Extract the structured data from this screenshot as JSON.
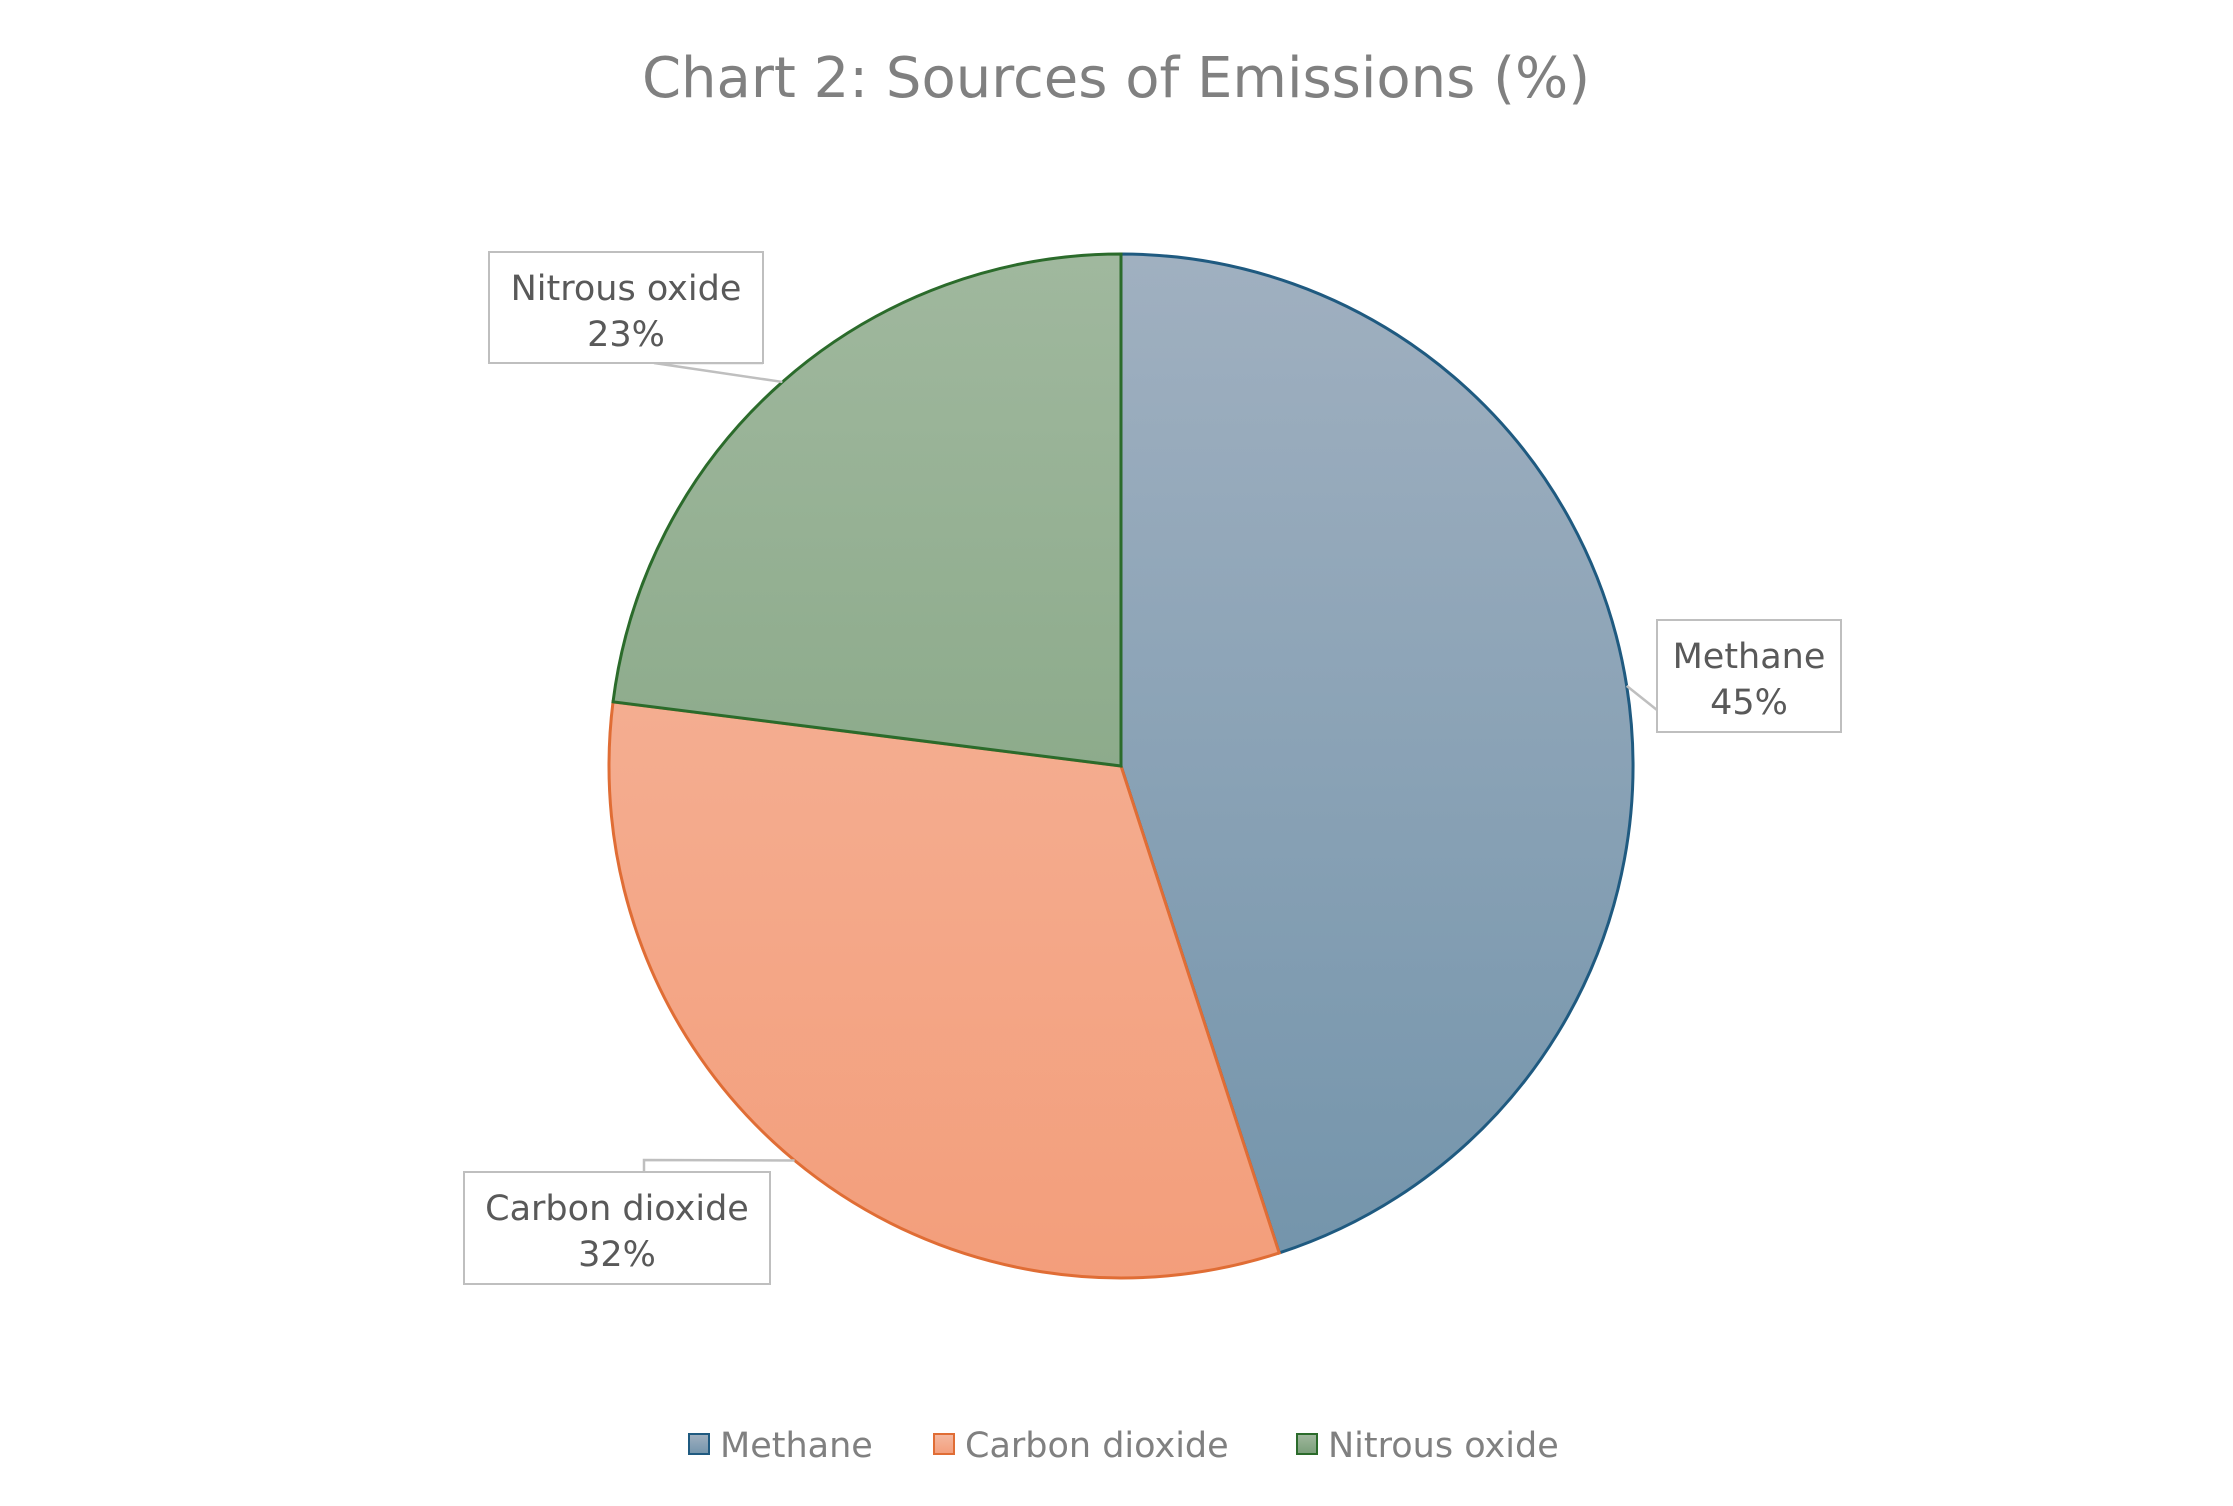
{
  "chart_data": {
    "type": "pie",
    "title": "Chart 2: Sources of Emissions (%)",
    "categories": [
      "Methane",
      "Carbon dioxide",
      "Nitrous oxide"
    ],
    "values": [
      45,
      32,
      23
    ],
    "data_labels": [
      {
        "name": "Methane",
        "value": "45%"
      },
      {
        "name": "Carbon dioxide",
        "value": "32%"
      },
      {
        "name": "Nitrous oxide",
        "value": "23%"
      }
    ],
    "start_angle": "12 o'clock, clockwise",
    "legend_position": "bottom",
    "colors": {
      "Methane": {
        "fill_top": "#a0b0c0",
        "fill_bottom": "#7394ab",
        "stroke": "#1f5a80"
      },
      "Carbon dioxide": {
        "fill_top": "#f5b9a1",
        "fill_bottom": "#f39e7b",
        "stroke": "#e06d35"
      },
      "Nitrous oxide": {
        "fill_top": "#a0b89e",
        "fill_bottom": "#7a9e79",
        "stroke": "#2b6b2b"
      }
    }
  }
}
